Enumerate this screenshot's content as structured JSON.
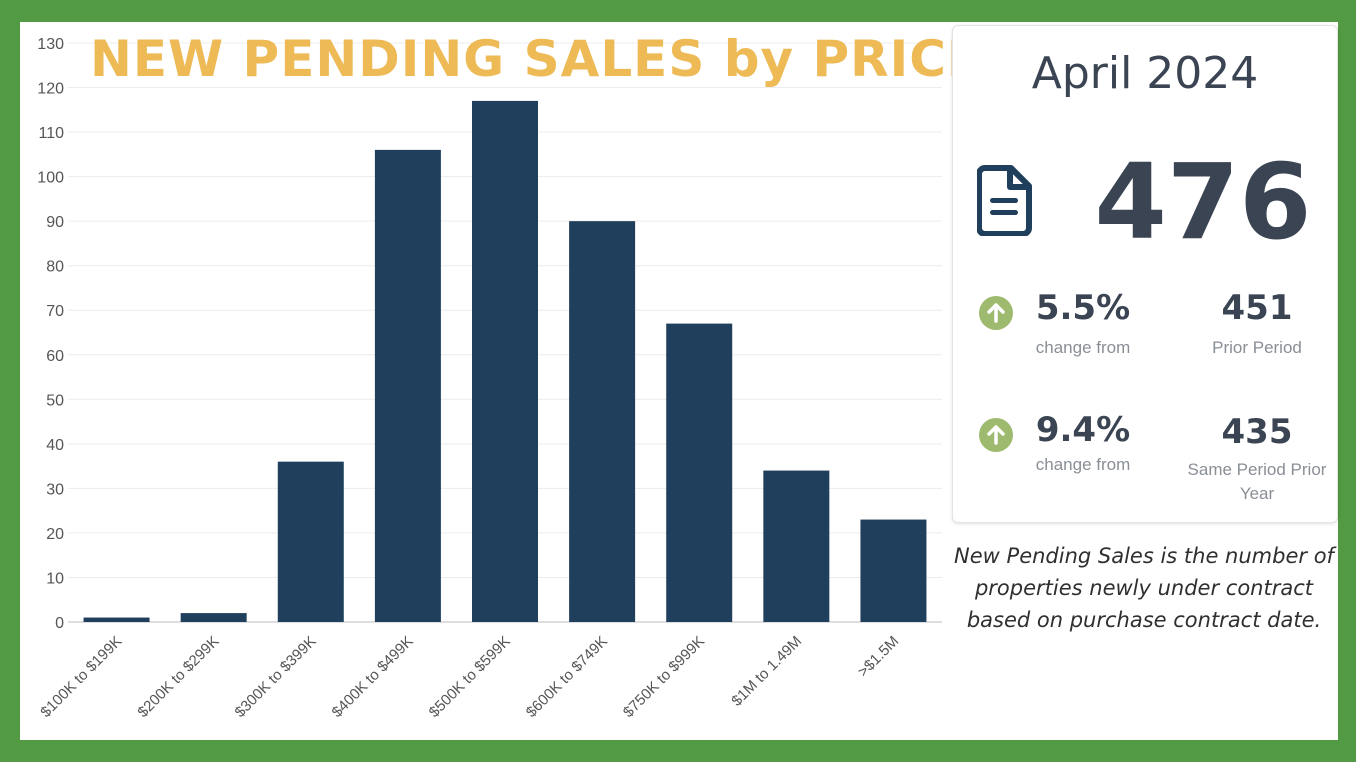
{
  "title": "NEW PENDING SALES by PRICE",
  "summary": {
    "period": "April 2024",
    "total": "476",
    "icon": "document-icon",
    "change_vs_prior": {
      "percent": "5.5%",
      "label": "change from",
      "value": "451",
      "value_label": "Prior Period"
    },
    "change_vs_year": {
      "percent": "9.4%",
      "label": "change from",
      "value": "435",
      "value_label": "Same Period Prior Year"
    }
  },
  "footnote": "New Pending Sales is the number of properties newly under contract based on purchase contract date.",
  "colors": {
    "bar": "#1F3F5C",
    "border": "#529A43",
    "title": "#EDBA55",
    "arrow": "#9DBA6E",
    "text": "#3a4452"
  },
  "chart_data": {
    "type": "bar",
    "title": "NEW PENDING SALES by PRICE",
    "categories": [
      "$100K to $199K",
      "$200K to $299K",
      "$300K to $399K",
      "$400K to $499K",
      "$500K to $599K",
      "$600K to $749K",
      "$750K to $999K",
      "$1M to 1.49M",
      ">$1.5M"
    ],
    "values": [
      1,
      2,
      36,
      106,
      117,
      90,
      67,
      34,
      23
    ],
    "ylim": [
      0,
      130
    ],
    "yticks": [
      0,
      10,
      20,
      30,
      40,
      50,
      60,
      70,
      80,
      90,
      100,
      110,
      120,
      130
    ],
    "grid": true,
    "legend": "none"
  }
}
